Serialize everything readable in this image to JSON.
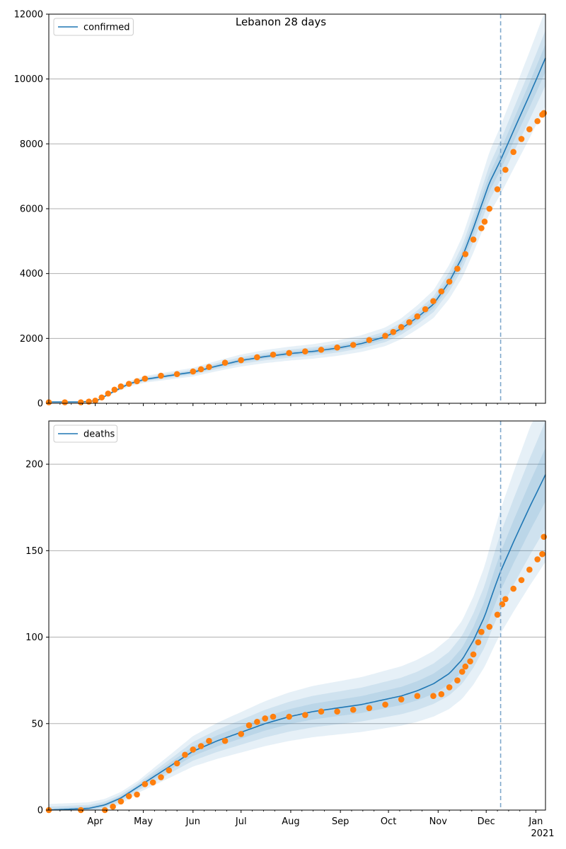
{
  "figure": {
    "title": "Lebanon 28 days",
    "background": "#ffffff",
    "colors": {
      "model_line": "#1f77b4",
      "band": "#1f77b4",
      "observed": "#ff7f0e",
      "grid": "#b0b0b0",
      "forecast_marker": "#7fa8cc"
    },
    "x_axis": {
      "domain_days": [
        0,
        310
      ],
      "forecast_start_day": 282,
      "month_ticks": [
        {
          "label": "Apr",
          "day": 29
        },
        {
          "label": "May",
          "day": 59
        },
        {
          "label": "Jun",
          "day": 90
        },
        {
          "label": "Jul",
          "day": 120
        },
        {
          "label": "Aug",
          "day": 151
        },
        {
          "label": "Sep",
          "day": 182
        },
        {
          "label": "Oct",
          "day": 212
        },
        {
          "label": "Nov",
          "day": 243
        },
        {
          "label": "Dec",
          "day": 273
        },
        {
          "label": "Jan",
          "day": 304
        }
      ],
      "year_label": "2021",
      "minor_tick_days": [
        7,
        14,
        21,
        36,
        43,
        50,
        66,
        73,
        80,
        97,
        104,
        111,
        127,
        134,
        141,
        158,
        165,
        172,
        189,
        196,
        203,
        219,
        226,
        233,
        250,
        257,
        264,
        280,
        287,
        294
      ]
    }
  },
  "chart_data": [
    {
      "type": "line",
      "series_name": "confirmed",
      "legend": [
        "confirmed"
      ],
      "legend_position": "top-left",
      "ylim": [
        0,
        12000
      ],
      "y_ticks": [
        0,
        2000,
        4000,
        6000,
        8000,
        10000,
        12000
      ],
      "grid": true,
      "model_x": [
        0,
        20,
        30,
        40,
        50,
        60,
        75,
        90,
        105,
        120,
        135,
        150,
        165,
        180,
        195,
        210,
        220,
        230,
        240,
        250,
        258,
        265,
        270,
        275,
        282,
        290,
        300,
        310
      ],
      "model_y": [
        40,
        40,
        80,
        350,
        600,
        740,
        850,
        960,
        1150,
        1320,
        1440,
        1530,
        1600,
        1700,
        1840,
        2050,
        2300,
        2650,
        3050,
        3750,
        4500,
        5400,
        6100,
        6800,
        7500,
        8400,
        9500,
        10650
      ],
      "band_rel_width": [
        0.04,
        0.08,
        0.14
      ],
      "observed_x": [
        0,
        10,
        20,
        25,
        29,
        33,
        37,
        41,
        45,
        50,
        55,
        60,
        70,
        80,
        90,
        95,
        100,
        110,
        120,
        130,
        140,
        150,
        160,
        170,
        180,
        190,
        200,
        210,
        215,
        220,
        225,
        230,
        235,
        240,
        245,
        250,
        255,
        260,
        265,
        270,
        272,
        275,
        280,
        285,
        290,
        295,
        300,
        305,
        308,
        309
      ],
      "observed_y": [
        30,
        30,
        30,
        50,
        80,
        180,
        300,
        420,
        520,
        600,
        680,
        760,
        850,
        900,
        980,
        1050,
        1120,
        1250,
        1330,
        1420,
        1500,
        1550,
        1600,
        1650,
        1720,
        1800,
        1950,
        2080,
        2200,
        2350,
        2500,
        2680,
        2900,
        3150,
        3450,
        3750,
        4150,
        4600,
        5050,
        5400,
        5600,
        6000,
        6600,
        7200,
        7750,
        8150,
        8450,
        8700,
        8900,
        8950
      ]
    },
    {
      "type": "line",
      "series_name": "deaths",
      "legend": [
        "deaths"
      ],
      "legend_position": "top-left",
      "ylim": [
        0,
        225
      ],
      "y_ticks": [
        0,
        50,
        100,
        150,
        200
      ],
      "grid": true,
      "model_x": [
        0,
        25,
        35,
        45,
        55,
        65,
        75,
        90,
        105,
        120,
        135,
        150,
        165,
        180,
        195,
        210,
        220,
        230,
        240,
        250,
        258,
        265,
        272,
        278,
        282,
        290,
        300,
        310
      ],
      "model_y": [
        0,
        1,
        3,
        7,
        13,
        19,
        25,
        34,
        40,
        45,
        50,
        54,
        57,
        59,
        61,
        64,
        66,
        69,
        73,
        79,
        87,
        98,
        112,
        128,
        138,
        155,
        175,
        194
      ],
      "band_rel_width": [
        0.08,
        0.16,
        0.26
      ],
      "band_min_width": [
        1,
        2,
        3.5
      ],
      "observed_x": [
        0,
        20,
        35,
        40,
        45,
        50,
        55,
        60,
        65,
        70,
        75,
        80,
        85,
        90,
        95,
        100,
        110,
        120,
        125,
        130,
        135,
        140,
        150,
        160,
        170,
        180,
        190,
        200,
        210,
        220,
        230,
        240,
        245,
        250,
        255,
        258,
        260,
        263,
        265,
        268,
        270,
        275,
        280,
        283,
        285,
        290,
        295,
        300,
        305,
        308,
        309
      ],
      "observed_y": [
        0,
        0,
        0,
        2,
        5,
        8,
        9,
        15,
        16,
        19,
        23,
        27,
        32,
        35,
        37,
        40,
        40,
        44,
        49,
        51,
        53,
        54,
        54,
        55,
        57,
        57,
        58,
        59,
        61,
        64,
        66,
        66,
        67,
        71,
        75,
        80,
        83,
        86,
        90,
        97,
        103,
        106,
        113,
        119,
        122,
        128,
        133,
        139,
        145,
        148,
        158
      ]
    }
  ]
}
